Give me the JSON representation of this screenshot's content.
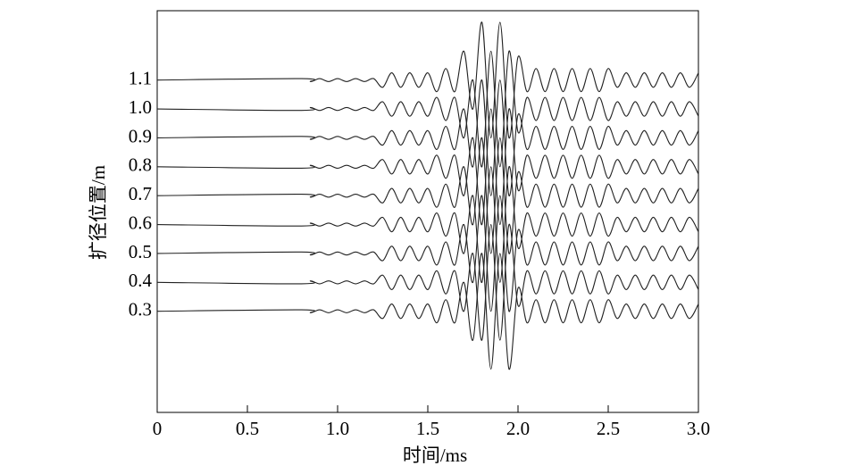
{
  "chart_data": {
    "type": "line",
    "x_label": "时间/ms",
    "y_label": "扩径位置/m",
    "xlim": [
      0,
      3
    ],
    "ylim": [
      -0.05,
      1.34
    ],
    "xticks": [
      0,
      0.5,
      {
        "value": 1,
        "label": "1.0"
      },
      1.5,
      {
        "value": 2,
        "label": "2.0"
      },
      2.5,
      {
        "value": 3,
        "label": "3.0"
      }
    ],
    "yticks": [
      0.3,
      0.4,
      0.5,
      0.6,
      0.7,
      0.8,
      0.9,
      {
        "value": 1,
        "label": "1.0"
      },
      1.1
    ],
    "x": [
      0,
      0.8,
      0.85,
      0.9,
      0.95,
      1.0,
      1.05,
      1.1,
      1.15,
      1.2,
      1.25,
      1.3,
      1.35,
      1.4,
      1.45,
      1.5,
      1.55,
      1.6,
      1.65,
      1.7,
      1.75,
      1.8,
      1.85,
      1.9,
      1.95,
      2.0,
      2.05,
      2.1,
      2.15,
      2.2,
      2.25,
      2.3,
      2.35,
      2.4,
      2.45,
      2.5,
      2.55,
      2.6,
      2.65,
      2.7,
      2.75,
      2.8,
      2.85,
      2.9,
      2.95,
      3.0
    ],
    "series": [
      {
        "color": "#222222",
        "values": [
          0.3,
          0.305,
          0.295,
          0.305,
          0.295,
          0.305,
          0.295,
          0.305,
          0.295,
          0.305,
          0.275,
          0.325,
          0.275,
          0.325,
          0.275,
          0.325,
          0.26,
          0.34,
          0.26,
          0.4,
          0.2,
          0.5,
          0.1,
          0.5,
          0.1,
          0.38,
          0.26,
          0.34,
          0.26,
          0.34,
          0.26,
          0.34,
          0.26,
          0.34,
          0.26,
          0.34,
          0.275,
          0.325,
          0.275,
          0.325,
          0.275,
          0.325,
          0.275,
          0.325,
          0.275,
          0.325
        ]
      },
      {
        "color": "#222222",
        "values": [
          0.4,
          0.395,
          0.405,
          0.395,
          0.405,
          0.395,
          0.405,
          0.395,
          0.405,
          0.395,
          0.425,
          0.375,
          0.425,
          0.375,
          0.425,
          0.375,
          0.44,
          0.36,
          0.44,
          0.3,
          0.5,
          0.2,
          0.6,
          0.2,
          0.6,
          0.32,
          0.44,
          0.36,
          0.44,
          0.36,
          0.44,
          0.36,
          0.44,
          0.36,
          0.44,
          0.36,
          0.425,
          0.375,
          0.425,
          0.375,
          0.425,
          0.375,
          0.425,
          0.375,
          0.425,
          0.375
        ]
      },
      {
        "color": "#222222",
        "values": [
          0.5,
          0.505,
          0.495,
          0.505,
          0.495,
          0.505,
          0.495,
          0.505,
          0.495,
          0.505,
          0.475,
          0.525,
          0.475,
          0.525,
          0.475,
          0.525,
          0.46,
          0.54,
          0.46,
          0.6,
          0.4,
          0.7,
          0.3,
          0.7,
          0.3,
          0.58,
          0.46,
          0.54,
          0.46,
          0.54,
          0.46,
          0.54,
          0.46,
          0.54,
          0.46,
          0.54,
          0.475,
          0.525,
          0.475,
          0.525,
          0.475,
          0.525,
          0.475,
          0.525,
          0.475,
          0.525
        ]
      },
      {
        "color": "#222222",
        "values": [
          0.6,
          0.595,
          0.605,
          0.595,
          0.605,
          0.595,
          0.605,
          0.595,
          0.605,
          0.595,
          0.625,
          0.575,
          0.625,
          0.575,
          0.625,
          0.575,
          0.64,
          0.56,
          0.64,
          0.5,
          0.7,
          0.4,
          0.8,
          0.4,
          0.8,
          0.52,
          0.64,
          0.56,
          0.64,
          0.56,
          0.64,
          0.56,
          0.64,
          0.56,
          0.64,
          0.56,
          0.625,
          0.575,
          0.625,
          0.575,
          0.625,
          0.575,
          0.625,
          0.575,
          0.625,
          0.575
        ]
      },
      {
        "color": "#222222",
        "values": [
          0.7,
          0.705,
          0.695,
          0.705,
          0.695,
          0.705,
          0.695,
          0.705,
          0.695,
          0.705,
          0.675,
          0.725,
          0.675,
          0.725,
          0.675,
          0.725,
          0.66,
          0.74,
          0.66,
          0.8,
          0.6,
          0.9,
          0.5,
          0.9,
          0.5,
          0.78,
          0.66,
          0.74,
          0.66,
          0.74,
          0.66,
          0.74,
          0.66,
          0.74,
          0.66,
          0.74,
          0.675,
          0.725,
          0.675,
          0.725,
          0.675,
          0.725,
          0.675,
          0.725,
          0.675,
          0.725
        ]
      },
      {
        "color": "#222222",
        "values": [
          0.8,
          0.795,
          0.805,
          0.795,
          0.805,
          0.795,
          0.805,
          0.795,
          0.805,
          0.795,
          0.825,
          0.775,
          0.825,
          0.775,
          0.825,
          0.775,
          0.84,
          0.76,
          0.84,
          0.7,
          0.9,
          0.6,
          1.0,
          0.6,
          1.0,
          0.72,
          0.84,
          0.76,
          0.84,
          0.76,
          0.84,
          0.76,
          0.84,
          0.76,
          0.84,
          0.76,
          0.825,
          0.775,
          0.825,
          0.775,
          0.825,
          0.775,
          0.825,
          0.775,
          0.825,
          0.775
        ]
      },
      {
        "color": "#222222",
        "values": [
          0.9,
          0.905,
          0.895,
          0.905,
          0.895,
          0.905,
          0.895,
          0.905,
          0.895,
          0.905,
          0.875,
          0.925,
          0.875,
          0.925,
          0.875,
          0.925,
          0.86,
          0.94,
          0.86,
          1.0,
          0.8,
          1.1,
          0.7,
          1.1,
          0.7,
          0.98,
          0.86,
          0.94,
          0.86,
          0.94,
          0.86,
          0.94,
          0.86,
          0.94,
          0.86,
          0.94,
          0.875,
          0.925,
          0.875,
          0.925,
          0.875,
          0.925,
          0.875,
          0.925,
          0.875,
          0.925
        ]
      },
      {
        "color": "#222222",
        "values": [
          1.0,
          0.995,
          1.005,
          0.995,
          1.005,
          0.995,
          1.005,
          0.995,
          1.005,
          0.995,
          1.025,
          0.975,
          1.025,
          0.975,
          1.025,
          0.975,
          1.04,
          0.96,
          1.04,
          0.9,
          1.1,
          0.8,
          1.2,
          0.8,
          1.2,
          0.92,
          1.04,
          0.96,
          1.04,
          0.96,
          1.04,
          0.96,
          1.04,
          0.96,
          1.04,
          0.96,
          1.025,
          0.975,
          1.025,
          0.975,
          1.025,
          0.975,
          1.025,
          0.975,
          1.025,
          0.975
        ]
      },
      {
        "color": "#222222",
        "values": [
          1.1,
          1.105,
          1.095,
          1.105,
          1.095,
          1.105,
          1.095,
          1.105,
          1.095,
          1.105,
          1.075,
          1.125,
          1.075,
          1.125,
          1.075,
          1.125,
          1.06,
          1.14,
          1.06,
          1.2,
          1.0,
          1.3,
          0.9,
          1.3,
          0.9,
          1.18,
          1.06,
          1.14,
          1.06,
          1.14,
          1.06,
          1.14,
          1.06,
          1.14,
          1.06,
          1.14,
          1.075,
          1.125,
          1.075,
          1.125,
          1.075,
          1.125,
          1.075,
          1.125,
          1.075,
          1.125
        ]
      }
    ]
  }
}
